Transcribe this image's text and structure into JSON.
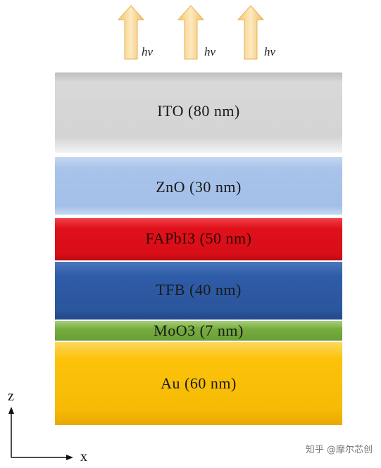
{
  "emission": {
    "arrows": [
      {
        "label": "hν"
      },
      {
        "label": "hν"
      },
      {
        "label": "hν"
      }
    ]
  },
  "layers": [
    {
      "name": "ITO",
      "label": "ITO (80 nm)",
      "color": "#d4d4d4"
    },
    {
      "name": "ZnO",
      "label": "ZnO (30 nm)",
      "color": "#a9c4ea"
    },
    {
      "name": "FAPbI3",
      "label": "FAPbI3 (50 nm)",
      "color": "#e0101a"
    },
    {
      "name": "TFB",
      "label": "TFB (40 nm)",
      "color": "#2f5ca7"
    },
    {
      "name": "MoO3",
      "label": "MoO3 (7 nm)",
      "color": "#77ad3f"
    },
    {
      "name": "Au",
      "label": "Au (60 nm)",
      "color": "#fcc20a"
    }
  ],
  "axes": {
    "z_label": "z",
    "x_label": "x"
  },
  "watermark": "知乎 @摩尔芯创"
}
